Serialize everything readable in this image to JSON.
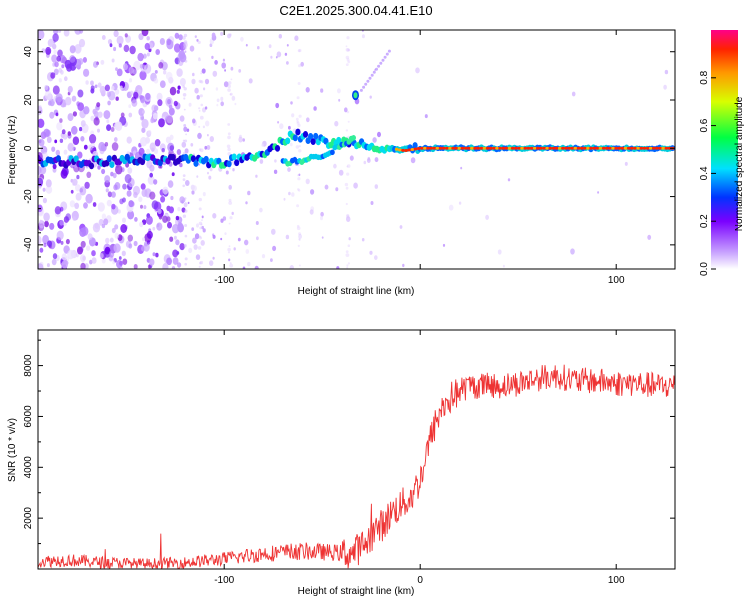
{
  "title": "C2E1.2025.300.04.41.E10",
  "chart_data": [
    {
      "type": "heatmap",
      "xlabel": "Height of straight line (km)",
      "ylabel": "Frequency (Hz)",
      "xlim": [
        -195,
        130
      ],
      "ylim": [
        -50,
        49
      ],
      "x_ticks": [
        -100,
        0,
        100
      ],
      "x_tick_labels": [
        "-100",
        "",
        "100"
      ],
      "y_ticks": [
        -40,
        -20,
        0,
        20,
        40
      ],
      "y_tick_labels": [
        "-40",
        "-20",
        "0",
        "20",
        "40"
      ],
      "ridge": {
        "x": [
          -195,
          -170,
          -150,
          -120,
          -100,
          -85,
          -75,
          -65,
          -55,
          -45,
          -35,
          -25,
          -15,
          -8,
          0,
          5,
          20,
          50,
          100,
          130
        ],
        "y": [
          -5,
          -6,
          -5,
          -5,
          -6,
          -3,
          0,
          6,
          4,
          2,
          3,
          1,
          0,
          -1,
          0,
          0,
          0,
          0,
          0,
          0
        ]
      },
      "secondary_branch": {
        "x": [
          -70,
          -60,
          -50,
          -40,
          -33
        ],
        "y": [
          -6,
          -5,
          -3,
          1,
          5
        ]
      },
      "spot": {
        "x": -33,
        "y": 22
      },
      "colorbar": {
        "label": "Normalized spectral amplitude",
        "ticks": [
          0.0,
          0.2,
          0.4,
          0.6,
          0.8
        ],
        "tick_labels": [
          "0.0",
          "0.2",
          "0.4",
          "0.6",
          "0.8"
        ],
        "range": [
          0,
          1
        ]
      }
    },
    {
      "type": "line",
      "xlabel": "Height of straight line (km)",
      "ylabel": "SNR (10 * v/v)",
      "xlim": [
        -195,
        130
      ],
      "ylim": [
        0,
        9400
      ],
      "x_ticks": [
        -100,
        0,
        100
      ],
      "x_tick_labels": [
        "-100",
        "0",
        "100"
      ],
      "y_ticks": [
        2000,
        4000,
        6000,
        8000
      ],
      "y_tick_labels": [
        "2000",
        "4000",
        "6000",
        "8000"
      ],
      "series": [
        {
          "name": "SNR",
          "color": "#ee3333",
          "x": [
            -195,
            -180,
            -160,
            -140,
            -120,
            -100,
            -80,
            -60,
            -45,
            -35,
            -28,
            -22,
            -18,
            -15,
            -10,
            -5,
            0,
            3,
            6,
            9,
            12,
            15,
            20,
            25,
            30,
            40,
            50,
            60,
            70,
            80,
            90,
            100,
            110,
            120,
            130
          ],
          "y": [
            300,
            350,
            250,
            200,
            250,
            400,
            600,
            700,
            650,
            600,
            1000,
            1600,
            1800,
            2200,
            2500,
            2800,
            3500,
            4500,
            5300,
            6000,
            6400,
            6700,
            7000,
            7200,
            7200,
            7200,
            7300,
            7500,
            7600,
            7400,
            7400,
            7300,
            7300,
            7200,
            7200
          ]
        }
      ]
    }
  ]
}
